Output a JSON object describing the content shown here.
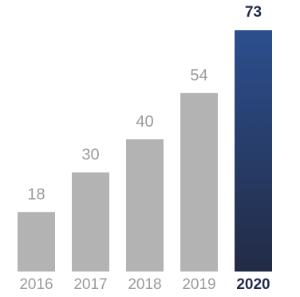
{
  "chart_data": {
    "type": "bar",
    "categories": [
      "2016",
      "2017",
      "2018",
      "2019",
      "2020"
    ],
    "values": [
      18,
      30,
      40,
      54,
      73
    ],
    "value_labels": [
      "18",
      "30",
      "40",
      "54",
      "73"
    ],
    "highlight_index": 4,
    "ylim": [
      0,
      73
    ],
    "grid": false,
    "legend": "none",
    "colors": {
      "bar": "#b3b3b3",
      "highlight_top": "#2c4f8e",
      "highlight_bottom": "#222b45",
      "label": "#9a9a9a",
      "highlight_label": "#1f2a4a"
    }
  }
}
